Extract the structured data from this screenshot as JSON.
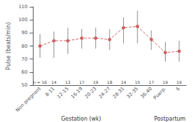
{
  "chart_data": {
    "type": "line",
    "categories": [
      "Non-pregnant",
      "8-11",
      "12-15",
      "16-19",
      "20-23",
      "24-27",
      "28-31",
      "32-35",
      "36-40",
      "Puerp.",
      "6"
    ],
    "values": [
      80,
      84,
      84,
      86,
      86,
      85,
      94,
      95,
      85,
      75,
      76
    ],
    "errors_low": [
      9,
      13,
      10,
      8,
      8,
      8,
      12,
      13,
      8,
      7,
      8
    ],
    "errors_high": [
      9,
      7,
      10,
      7,
      8,
      8,
      8,
      12,
      7,
      8,
      8
    ],
    "n_labels": [
      "n = 16",
      "14",
      "13",
      "17",
      "19",
      "18",
      "14",
      "15",
      "17",
      "19",
      "19"
    ],
    "color": "#d06060",
    "line_style": "dashed",
    "marker": "circle",
    "ylabel": "Pulse (beats/min)",
    "xlabel": "Gestation (wk)",
    "annotations": [
      "Postpartum"
    ],
    "ylim": [
      50,
      110
    ],
    "yticks": [
      50,
      60,
      70,
      80,
      90,
      100,
      110
    ],
    "grid": false
  }
}
